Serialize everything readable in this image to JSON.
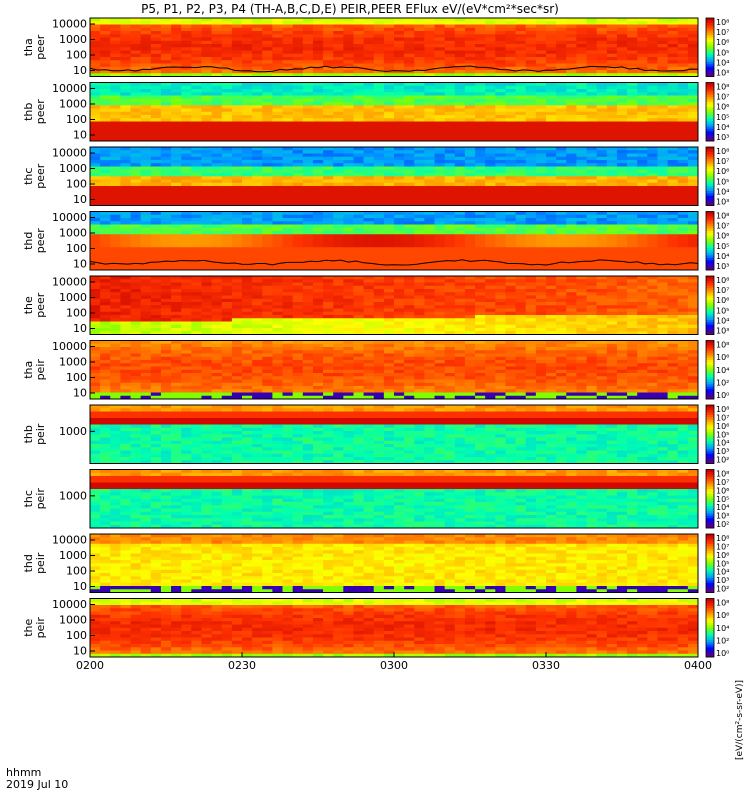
{
  "title": "P5, P1, P2, P3, P4 (TH-A,B,C,D,E) PEIR,PEER EFlux eV/(eV*cm²*sec*sr)",
  "colorbar_label": "[eV/(cm²-s-sr-eV)]",
  "footer": {
    "time_label": "hhmm",
    "date_label": "2019 Jul 10"
  },
  "chart_data": {
    "type": "heatmap",
    "x_ticks": [
      "0200",
      "0230",
      "0300",
      "0330",
      "0400"
    ],
    "xlim": [
      "0200",
      "0400"
    ],
    "log_y": true,
    "grid": false,
    "colorscale": [
      "#5a007f",
      "#0000ff",
      "#00a0ff",
      "#00ffb0",
      "#80ff00",
      "#ffff00",
      "#ff9900",
      "#ff3300",
      "#c80000"
    ],
    "panels": [
      {
        "label_line1": "tha",
        "label_line2": "peer",
        "y_ticks": [
          "10000",
          "1000",
          "100",
          "10"
        ],
        "cbar_ticks": [
          "10⁸",
          "10⁷",
          "10⁶",
          "10⁵",
          "10⁴",
          "10³"
        ],
        "theme": "ions_high",
        "has_line": true
      },
      {
        "label_line1": "thb",
        "label_line2": "peer",
        "y_ticks": [
          "10000",
          "1000",
          "100",
          "10"
        ],
        "cbar_ticks": [
          "10⁸",
          "10⁷",
          "10⁶",
          "10⁵",
          "10⁴",
          "10³"
        ],
        "theme": "electrons_low",
        "has_line": false
      },
      {
        "label_line1": "thc",
        "label_line2": "peer",
        "y_ticks": [
          "10000",
          "1000",
          "100",
          "10"
        ],
        "cbar_ticks": [
          "10⁸",
          "10⁷",
          "10⁶",
          "10⁵",
          "10⁴",
          "10³"
        ],
        "theme": "electrons_blue",
        "has_line": false
      },
      {
        "label_line1": "thd",
        "label_line2": "peer",
        "y_ticks": [
          "10000",
          "1000",
          "100",
          "10"
        ],
        "cbar_ticks": [
          "10⁸",
          "10⁷",
          "10⁶",
          "10⁵",
          "10⁴",
          "10³"
        ],
        "theme": "electrons_mid",
        "has_line": true
      },
      {
        "label_line1": "the",
        "label_line2": "peer",
        "y_ticks": [
          "10000",
          "1000",
          "100",
          "10"
        ],
        "cbar_ticks": [
          "10⁸",
          "10⁷",
          "10⁶",
          "10⁵",
          "10⁴",
          "10³"
        ],
        "theme": "electrons_decay",
        "has_line": false
      },
      {
        "label_line1": "tha",
        "label_line2": "peir",
        "y_ticks": [
          "10000",
          "1000",
          "100",
          "10"
        ],
        "cbar_ticks": [
          "10⁸",
          "10⁶",
          "10⁴",
          "10²",
          "10⁰"
        ],
        "theme": "ions_noise",
        "has_line": false
      },
      {
        "label_line1": "thb",
        "label_line2": "peir",
        "y_ticks": [
          "1000"
        ],
        "cbar_ticks": [
          "10⁸",
          "10⁷",
          "10⁶",
          "10⁵",
          "10⁴",
          "10³",
          "10²"
        ],
        "theme": "ions_band",
        "has_line": false
      },
      {
        "label_line1": "thc",
        "label_line2": "peir",
        "y_ticks": [
          "1000"
        ],
        "cbar_ticks": [
          "10⁸",
          "10⁷",
          "10⁶",
          "10⁵",
          "10⁴",
          "10³",
          "10²"
        ],
        "theme": "ions_band",
        "has_line": false
      },
      {
        "label_line1": "thd",
        "label_line2": "peir",
        "y_ticks": [
          "10000",
          "1000",
          "100",
          "10"
        ],
        "cbar_ticks": [
          "10⁸",
          "10⁷",
          "10⁶",
          "10⁵",
          "10⁴",
          "10³",
          "10²"
        ],
        "theme": "ions_yellow",
        "has_line": false
      },
      {
        "label_line1": "the",
        "label_line2": "peir",
        "y_ticks": [
          "10000",
          "1000",
          "100",
          "10"
        ],
        "cbar_ticks": [
          "10⁸",
          "10⁶",
          "10⁴",
          "10²",
          "10⁰"
        ],
        "theme": "ions_high",
        "has_line": false
      }
    ]
  }
}
